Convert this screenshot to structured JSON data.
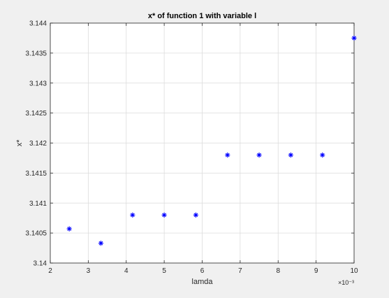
{
  "chart_data": {
    "type": "scatter",
    "title": "x* of function 1 with variable l",
    "xlabel": "lamda",
    "ylabel": "x*",
    "x_exponent": "×10⁻³",
    "xlim": [
      2,
      10
    ],
    "ylim": [
      3.14,
      3.144
    ],
    "xticks": [
      2,
      3,
      4,
      5,
      6,
      7,
      8,
      9,
      10
    ],
    "xtick_labels": [
      "2",
      "3",
      "4",
      "5",
      "6",
      "7",
      "8",
      "9",
      "10"
    ],
    "yticks": [
      3.14,
      3.1405,
      3.141,
      3.1415,
      3.142,
      3.1425,
      3.143,
      3.1435,
      3.144
    ],
    "ytick_labels": [
      "3.14",
      "3.1405",
      "3.141",
      "3.1415",
      "3.142",
      "3.1425",
      "3.143",
      "3.1435",
      "3.144"
    ],
    "grid": true,
    "marker": "*",
    "marker_color": "#0000ff",
    "series": [
      {
        "x": [
          2.5,
          3.333,
          4.167,
          5.0,
          5.833,
          6.667,
          7.5,
          8.333,
          9.167,
          10.0
        ],
        "y": [
          3.14057,
          3.14033,
          3.1408,
          3.1408,
          3.1408,
          3.1418,
          3.1418,
          3.1418,
          3.1418,
          3.14375
        ]
      }
    ]
  }
}
